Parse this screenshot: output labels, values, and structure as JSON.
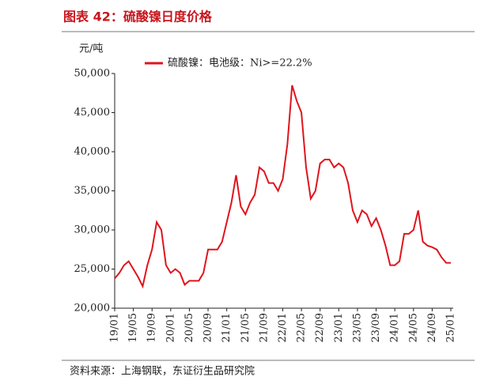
{
  "chart_data": {
    "type": "line",
    "title": "图表 42：硫酸镍日度价格",
    "y_unit": "元/吨",
    "source": "资料来源：上海钢联，东证衍生品研究院",
    "categories": [
      "19/01",
      null,
      null,
      null,
      "19/05",
      null,
      null,
      null,
      "19/09",
      null,
      null,
      null,
      "20/01",
      null,
      null,
      null,
      "20/05",
      null,
      null,
      null,
      "20/09",
      null,
      null,
      null,
      "21/01",
      null,
      null,
      null,
      "21/05",
      null,
      null,
      null,
      "21/09",
      null,
      null,
      null,
      "22/01",
      null,
      null,
      null,
      "22/05",
      null,
      null,
      null,
      "22/09",
      null,
      null,
      null,
      "23/01",
      null,
      null,
      null,
      "23/05",
      null,
      null,
      null,
      "23/09",
      null,
      null,
      null,
      "24/01",
      null,
      null,
      null,
      "24/05",
      null,
      null,
      null,
      "24/09",
      null,
      null,
      null,
      "25/01"
    ],
    "series": [
      {
        "name": "硫酸镍：电池级：Ni>=22.2%",
        "color": "#e0141c",
        "values": [
          23800,
          24500,
          25500,
          26000,
          25000,
          24000,
          22800,
          25500,
          27500,
          31000,
          30000,
          25500,
          24500,
          25000,
          24500,
          23000,
          23500,
          23500,
          23500,
          24500,
          27500,
          27500,
          27500,
          28500,
          31000,
          33500,
          37000,
          33000,
          32000,
          33500,
          34500,
          38000,
          37500,
          36000,
          36000,
          35000,
          36500,
          41000,
          48500,
          46500,
          45000,
          38000,
          34000,
          35000,
          38500,
          39000,
          39000,
          38000,
          38500,
          38000,
          36000,
          32500,
          31000,
          32500,
          32000,
          30500,
          31500,
          30000,
          28000,
          25500,
          25500,
          26000,
          29500,
          29500,
          30000,
          32500,
          28500,
          28000,
          27800,
          27500,
          26500,
          25800,
          25800
        ]
      }
    ],
    "ylim": [
      20000,
      50000
    ],
    "yticks": [
      {
        "value": 20000,
        "label": "20,000"
      },
      {
        "value": 25000,
        "label": "25,000"
      },
      {
        "value": 30000,
        "label": "30,000"
      },
      {
        "value": 35000,
        "label": "35,000"
      },
      {
        "value": 40000,
        "label": "40,000"
      },
      {
        "value": 45000,
        "label": "45,000"
      },
      {
        "value": 50000,
        "label": "50,000"
      }
    ],
    "grid": false
  }
}
